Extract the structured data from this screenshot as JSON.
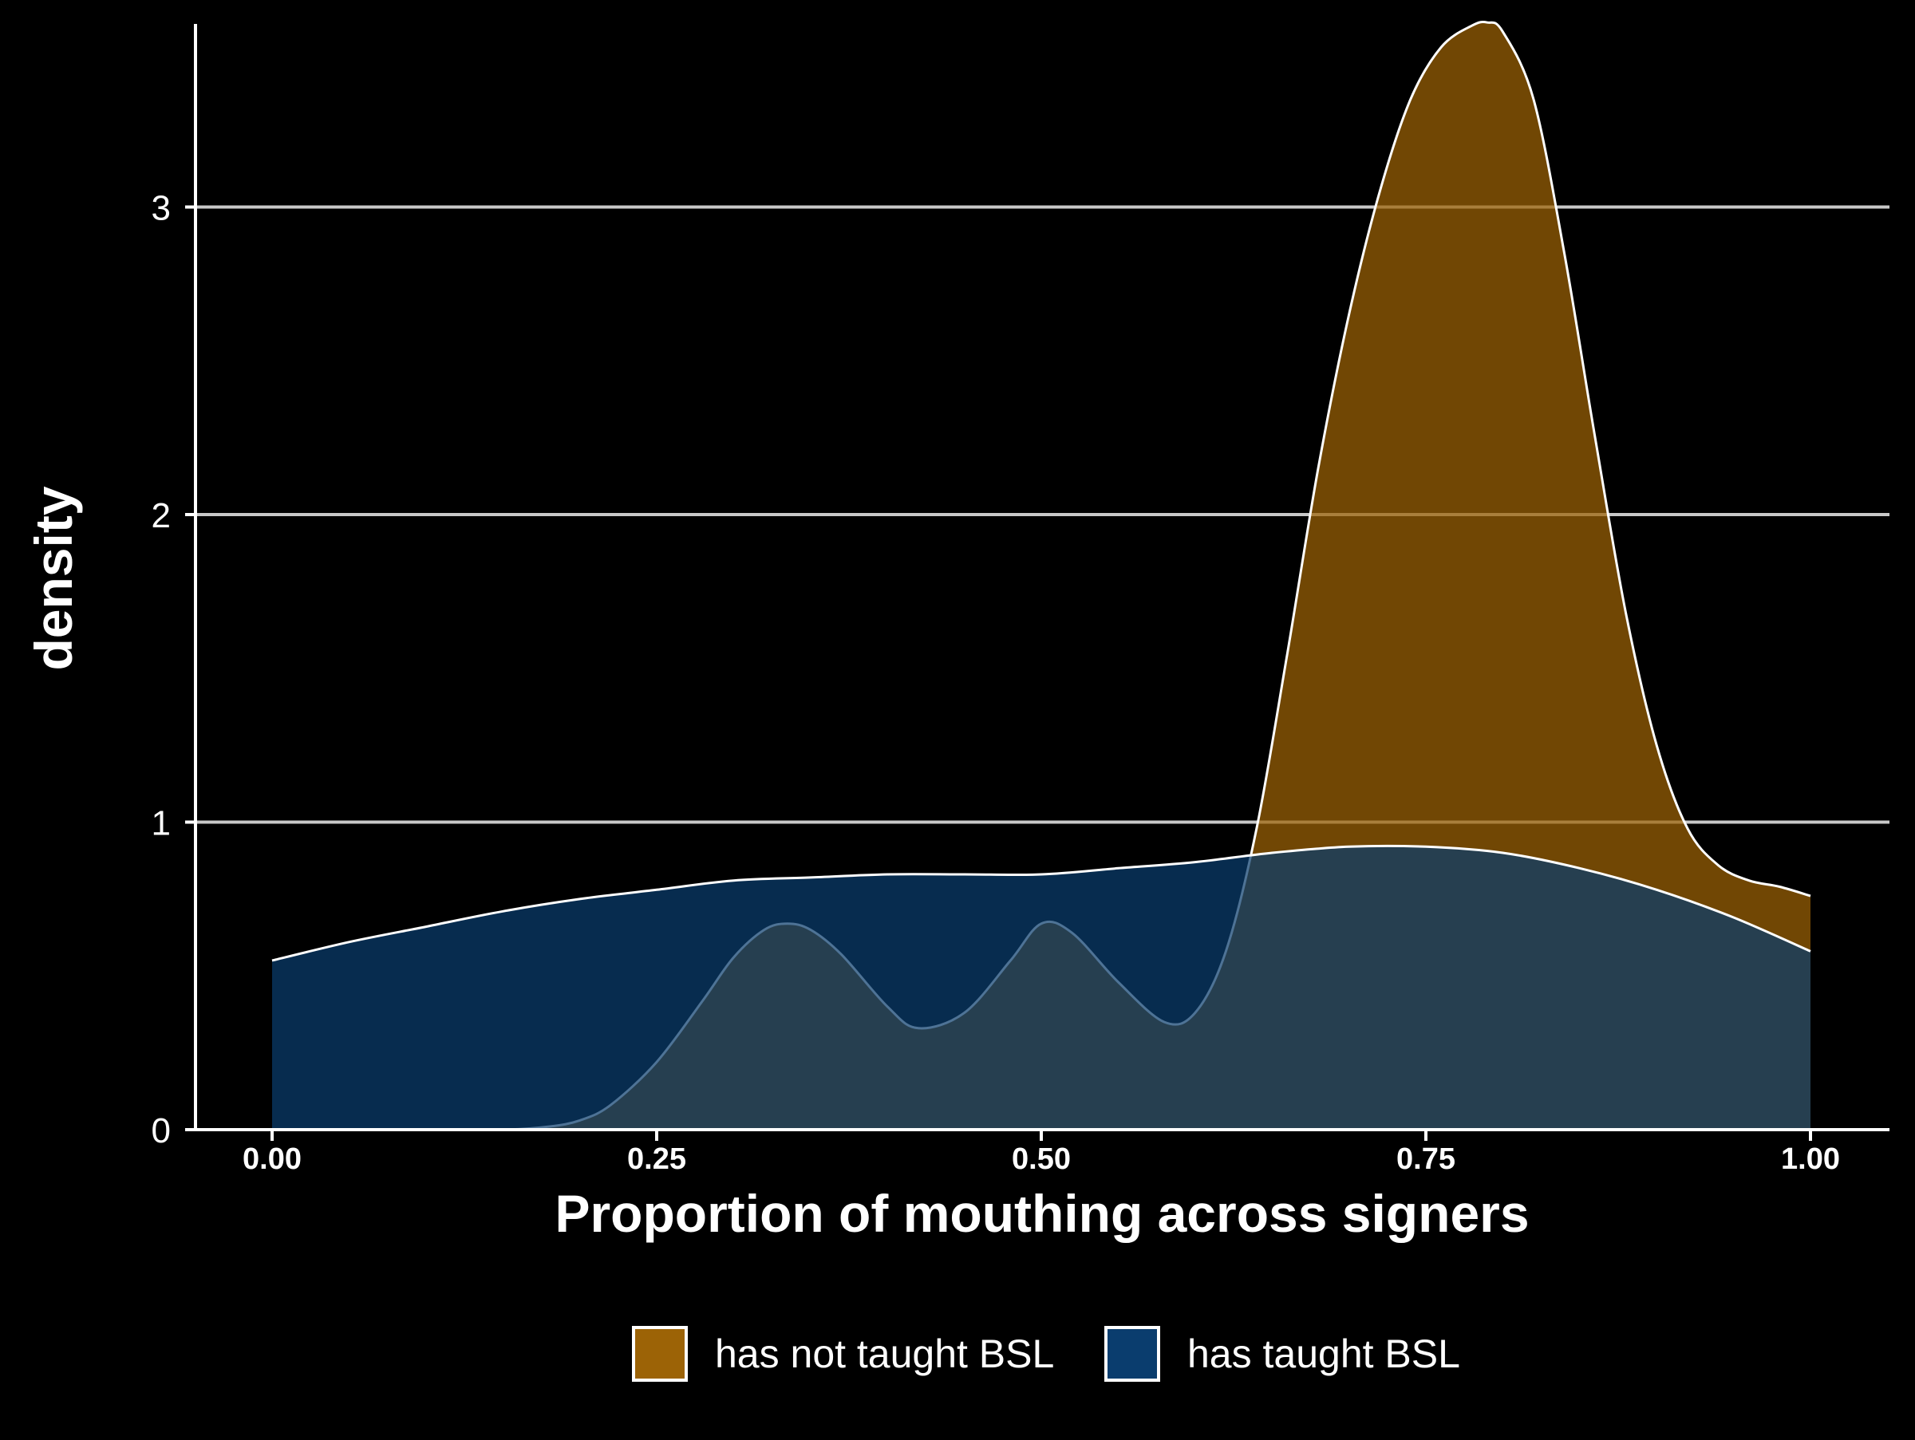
{
  "chart_data": {
    "type": "area",
    "chart_kind": "density",
    "title": "",
    "xlabel": "Proportion of mouthing across signers",
    "ylabel": "density",
    "xlim": [
      -0.05,
      1.05
    ],
    "ylim": [
      0,
      3.6
    ],
    "x_ticks": [
      0.0,
      0.25,
      0.5,
      0.75,
      1.0
    ],
    "x_tick_labels": [
      "0.00",
      "0.25",
      "0.50",
      "0.75",
      "1.00"
    ],
    "y_ticks": [
      0,
      1,
      2,
      3
    ],
    "y_tick_labels": [
      "0",
      "1",
      "2",
      "3"
    ],
    "horizontal_grid": true,
    "vertical_grid": false,
    "legend_position": "bottom",
    "background": "#000000",
    "series": [
      {
        "name": "has not taught BSL",
        "color": "#9c6306",
        "outline": "#ffffff",
        "x": [
          0.0,
          0.05,
          0.1,
          0.15,
          0.18,
          0.2,
          0.22,
          0.25,
          0.28,
          0.3,
          0.32,
          0.335,
          0.35,
          0.37,
          0.4,
          0.42,
          0.45,
          0.48,
          0.5,
          0.52,
          0.55,
          0.58,
          0.6,
          0.62,
          0.64,
          0.66,
          0.68,
          0.7,
          0.72,
          0.74,
          0.76,
          0.78,
          0.79,
          0.8,
          0.82,
          0.84,
          0.86,
          0.88,
          0.9,
          0.92,
          0.94,
          0.96,
          0.98,
          1.0
        ],
        "y": [
          0.0,
          0.0,
          0.0,
          0.0,
          0.01,
          0.03,
          0.08,
          0.22,
          0.42,
          0.56,
          0.65,
          0.67,
          0.65,
          0.57,
          0.4,
          0.33,
          0.38,
          0.55,
          0.67,
          0.64,
          0.48,
          0.35,
          0.38,
          0.58,
          0.98,
          1.55,
          2.15,
          2.65,
          3.05,
          3.35,
          3.52,
          3.59,
          3.6,
          3.57,
          3.35,
          2.85,
          2.25,
          1.68,
          1.25,
          0.98,
          0.86,
          0.81,
          0.79,
          0.76
        ]
      },
      {
        "name": "has taught BSL",
        "color": "#0a3d6e",
        "outline": "#ffffff",
        "x": [
          0.0,
          0.05,
          0.1,
          0.15,
          0.2,
          0.25,
          0.3,
          0.35,
          0.4,
          0.45,
          0.5,
          0.55,
          0.6,
          0.65,
          0.7,
          0.75,
          0.8,
          0.85,
          0.9,
          0.95,
          1.0
        ],
        "y": [
          0.55,
          0.61,
          0.66,
          0.71,
          0.75,
          0.78,
          0.81,
          0.82,
          0.83,
          0.83,
          0.83,
          0.85,
          0.87,
          0.9,
          0.92,
          0.92,
          0.9,
          0.85,
          0.78,
          0.69,
          0.58
        ]
      }
    ]
  }
}
